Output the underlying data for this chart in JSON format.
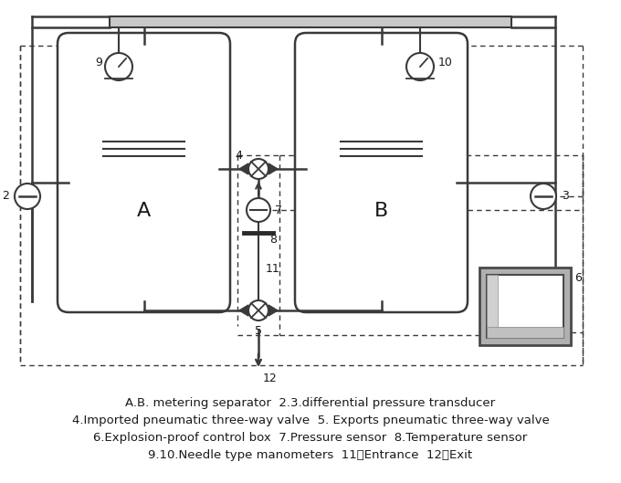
{
  "bg_color": "#ffffff",
  "line_color": "#3a3a3a",
  "dashed_color": "#3a3a3a",
  "text_color": "#1a1a1a",
  "caption_lines": [
    "A.B. metering separator  2.3.differential pressure transducer",
    "4.Imported pneumatic three-way valve  5. Exports pneumatic three-way valve",
    "6.Explosion-proof control box  7.Pressure sensor  8.Temperature sensor",
    "9.10.Needle type manometers  11、Entrance  12、Exit"
  ],
  "fig_width": 6.8,
  "fig_height": 5.29
}
